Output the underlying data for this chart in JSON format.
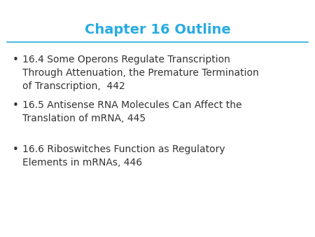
{
  "title": "Chapter 16 Outline",
  "title_color": "#29ABE2",
  "title_fontsize": 14,
  "title_fontstyle": "bold",
  "line_color": "#29ABE2",
  "background_color": "#FFFFFF",
  "text_color": "#333333",
  "bullet_items": [
    "16.4 Some Operons Regulate Transcription\nThrough Attenuation, the Premature Termination\nof Transcription,  442",
    "16.5 Antisense RNA Molecules Can Affect the\nTranslation of mRNA, 445",
    "16.6 Riboswitches Function as Regulatory\nElements in mRNAs, 446"
  ],
  "bullet_fontsize": 10,
  "bullet_color": "#333333",
  "bullet_symbol": "•",
  "figsize": [
    4.5,
    3.38
  ],
  "dpi": 100
}
